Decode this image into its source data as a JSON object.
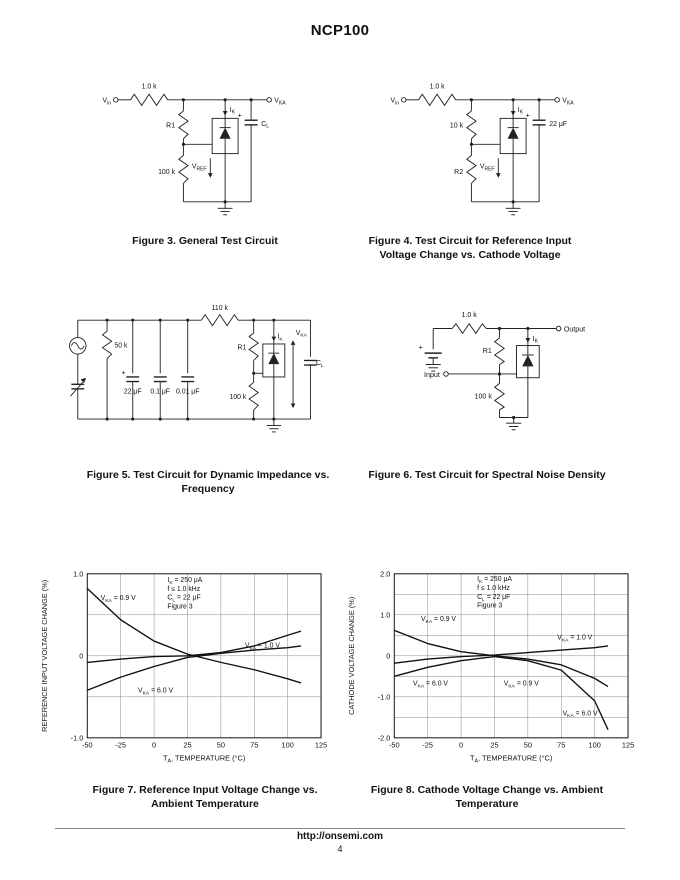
{
  "page": {
    "title": "NCP100",
    "footer_url": "http://onsemi.com",
    "footer_page": "4"
  },
  "fig3": {
    "caption": "Figure 3. General Test Circuit",
    "vin": "V~in~",
    "vka": "V~KA~",
    "r_top": "1.0 k",
    "r_upper": "R1",
    "r_lower": "100 k",
    "ik": "I~K~",
    "vref": "V~REF~",
    "cap": "C~L~",
    "plus": "+"
  },
  "fig4": {
    "caption": "Figure 4. Test Circuit for Reference Input Voltage Change vs. Cathode Voltage",
    "vin": "V~in~",
    "vka": "V~KA~",
    "r_top": "1.0 k",
    "r_upper": "10 k",
    "r_lower": "R2",
    "ik": "I~K~",
    "vref": "V~REF~",
    "cap": "22 μF",
    "plus": "+"
  },
  "fig5": {
    "caption": "Figure 5. Test Circuit for Dynamic Impedance vs. Frequency",
    "r_top": "110 k",
    "r_50k": "50 k",
    "cap1": "22 μF",
    "cap2": "0.1 μF",
    "cap3": "0.01 μF",
    "plus": "+",
    "r1": "R1",
    "r_100k": "100 k",
    "ik": "I~K~",
    "vka": "V~KA~",
    "cl": "C~L~"
  },
  "fig6": {
    "caption": "Figure 6. Test Circuit for Spectral Noise Density",
    "r_top": "1.0 k",
    "output": "Output",
    "input": "Input",
    "r1": "R1",
    "r_100k": "100 k",
    "ik": "I~K~",
    "plus": "+"
  },
  "fig7": {
    "caption": "Figure 7. Reference Input Voltage Change vs. Ambient Temperature"
  },
  "fig8": {
    "caption": "Figure 8. Cathode Voltage Change vs. Ambient Temperature"
  },
  "chart_data": [
    {
      "id": "figure7",
      "type": "line",
      "title": "",
      "xlabel": "T~A~, TEMPERATURE (°C)",
      "ylabel": "REFERENCE INPUT VOLTAGE CHANGE (%)",
      "xlim": [
        -50,
        125
      ],
      "ylim": [
        -1.0,
        1.0
      ],
      "xticks": [
        -50,
        -25,
        0,
        25,
        50,
        75,
        100,
        125
      ],
      "xtick_labels": [
        "-50",
        "-25",
        "0",
        "25",
        "50",
        "75",
        "100",
        "125"
      ],
      "yticks": [
        -1.0,
        0,
        1.0
      ],
      "ytick_labels": [
        "-1.0",
        "0",
        "1.0"
      ],
      "grid_y_step": 0.5,
      "grid": true,
      "legend_position": "none",
      "x": [
        -50,
        -25,
        0,
        25,
        50,
        75,
        100,
        110
      ],
      "series": [
        {
          "name": "V~KA~ = 0.9 V",
          "values": [
            0.82,
            0.44,
            0.18,
            0.02,
            -0.08,
            -0.17,
            -0.28,
            -0.33
          ]
        },
        {
          "name": "V~KA~ = 1.0 V",
          "values": [
            -0.08,
            -0.04,
            -0.01,
            0.0,
            0.04,
            0.12,
            0.25,
            0.3
          ]
        },
        {
          "name": "V~KA~ = 6.0 V",
          "values": [
            -0.42,
            -0.26,
            -0.13,
            -0.02,
            0.03,
            0.07,
            0.1,
            0.12
          ]
        }
      ],
      "annotations": [
        "I~K~ = 250 μA",
        "f ≤ 1.0 kHz",
        "C~L~ = 22 μF",
        "Figure 3"
      ],
      "annotation_pos": {
        "x": 10,
        "y": 0.9
      },
      "series_labels": [
        {
          "text": "V~KA~ = 0.9 V",
          "x": -40,
          "y": 0.68
        },
        {
          "text": "V~KA~ = 1.0 V",
          "x": 68,
          "y": 0.1
        },
        {
          "text": "V~KA~ = 6.0 V",
          "x": -12,
          "y": -0.45
        }
      ]
    },
    {
      "id": "figure8",
      "type": "line",
      "title": "",
      "xlabel": "T~A~, TEMPERATURE (°C)",
      "ylabel": "CATHODE VOLTAGE CHANGE (%)",
      "xlim": [
        -50,
        125
      ],
      "ylim": [
        -2.0,
        2.0
      ],
      "xticks": [
        -50,
        -25,
        0,
        25,
        50,
        75,
        100,
        125
      ],
      "xtick_labels": [
        "-50",
        "-25",
        "0",
        "25",
        "50",
        "75",
        "100",
        "125"
      ],
      "yticks": [
        -2.0,
        -1.0,
        0,
        1.0,
        2.0
      ],
      "ytick_labels": [
        "-2.0",
        "-1.0",
        "0",
        "1.0",
        "2.0"
      ],
      "grid_y_step": 0.5,
      "grid": true,
      "legend_position": "none",
      "x": [
        -50,
        -25,
        0,
        25,
        50,
        75,
        100,
        110
      ],
      "series": [
        {
          "name": "V~KA~ = 0.9 V",
          "values": [
            0.62,
            0.3,
            0.1,
            0.0,
            -0.08,
            -0.22,
            -0.55,
            -0.75
          ]
        },
        {
          "name": "V~KA~ = 1.0 V",
          "values": [
            -0.18,
            -0.08,
            -0.02,
            0.02,
            0.08,
            0.14,
            0.2,
            0.24
          ]
        },
        {
          "name": "V~KA~ = 6.0 V",
          "values": [
            -0.5,
            -0.28,
            -0.12,
            -0.02,
            -0.12,
            -0.35,
            -1.1,
            -1.8
          ]
        }
      ],
      "annotations": [
        "I~K~ = 250 μA",
        "f ≤ 1.0 kHz",
        "C~L~ = 22 μF",
        "Figure 3"
      ],
      "annotation_pos": {
        "x": 12,
        "y": 1.82
      },
      "series_labels": [
        {
          "text": "V~KA~ = 0.9 V",
          "x": -30,
          "y": 0.85
        },
        {
          "text": "V~KA~ = 1.0 V",
          "x": 72,
          "y": 0.4
        },
        {
          "text": "V~KA~ = 6.0 V",
          "x": -36,
          "y": -0.72
        },
        {
          "text": "V~KA~ = 0.9 V",
          "x": 32,
          "y": -0.72
        },
        {
          "text": "V~KA~ = 6.0 V",
          "x": 76,
          "y": -1.45
        }
      ]
    }
  ]
}
